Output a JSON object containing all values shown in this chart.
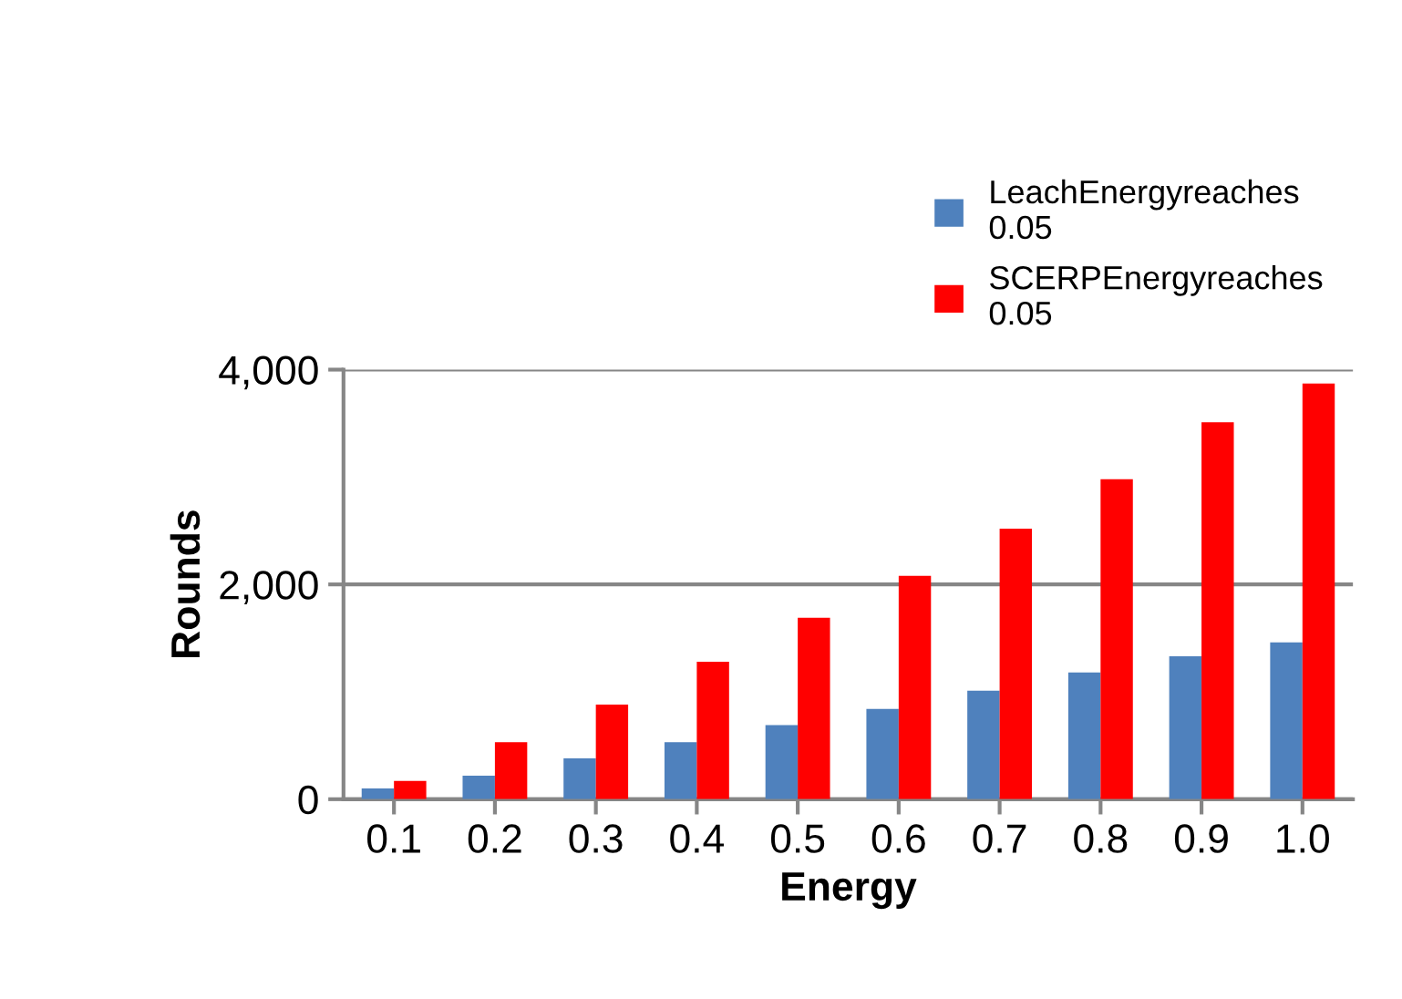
{
  "chart_data": {
    "type": "bar",
    "xlabel": "Energy",
    "ylabel": "Rounds",
    "categories": [
      "0.1",
      "0.2",
      "0.3",
      "0.4",
      "0.5",
      "0.6",
      "0.7",
      "0.8",
      "0.9",
      "1.0"
    ],
    "series": [
      {
        "name": "LeachEnergyreaches\n0.05",
        "color": "#4f81bd",
        "values": [
          100,
          220,
          380,
          530,
          690,
          840,
          1010,
          1180,
          1330,
          1460
        ]
      },
      {
        "name": "SCERPEnergyreaches\n0.05",
        "color": "#ff0000",
        "values": [
          170,
          530,
          880,
          1280,
          1690,
          2080,
          2520,
          2980,
          3510,
          3870
        ]
      }
    ],
    "ylim": [
      0,
      4000
    ],
    "yticks": [
      {
        "value": 0,
        "label": "0"
      },
      {
        "value": 2000,
        "label": "2,000"
      },
      {
        "value": 4000,
        "label": "4,000"
      }
    ],
    "grid": "y",
    "legend": "top right"
  }
}
